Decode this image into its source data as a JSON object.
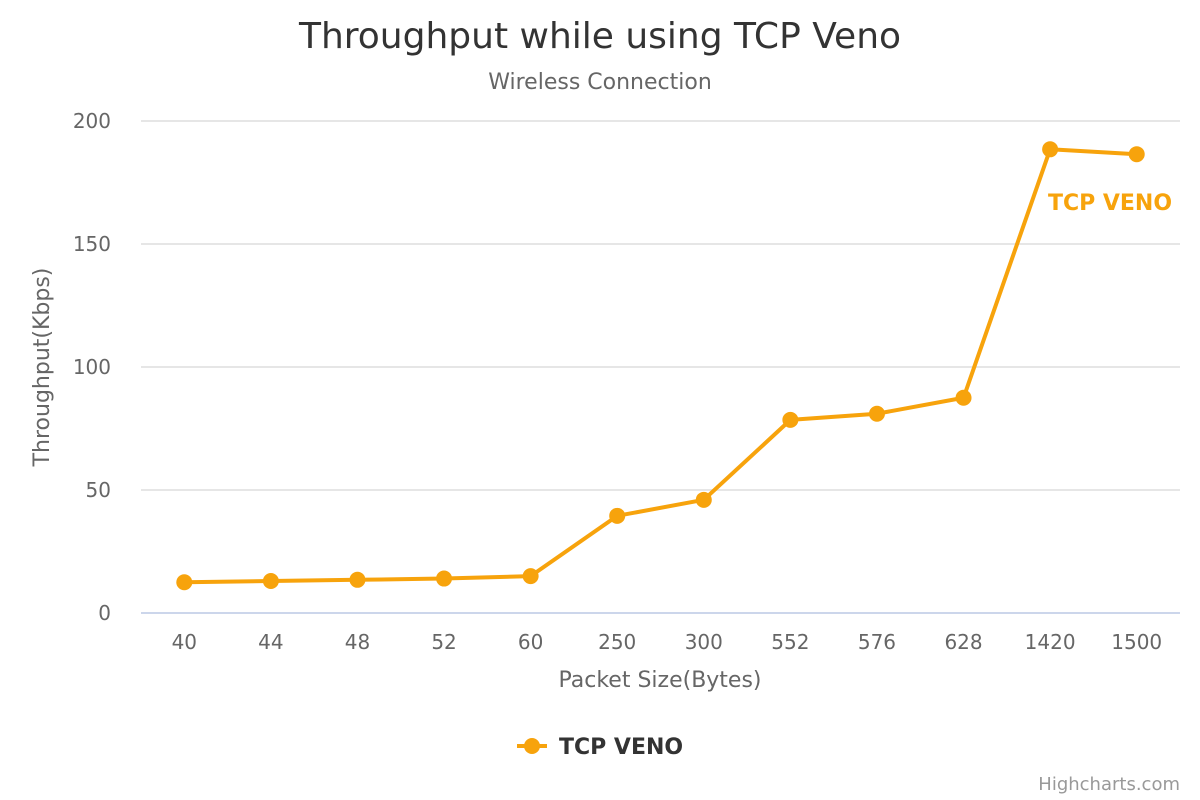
{
  "chart_data": {
    "type": "line",
    "title": "Throughput while using TCP Veno",
    "subtitle": "Wireless Connection",
    "xlabel": "Packet Size(Bytes)",
    "ylabel": "Throughput(Kbps)",
    "categories": [
      "40",
      "44",
      "48",
      "52",
      "60",
      "250",
      "300",
      "552",
      "576",
      "628",
      "1420",
      "1500"
    ],
    "ylim": [
      0,
      200
    ],
    "yticks": [
      0,
      50,
      100,
      150,
      200
    ],
    "grid": true,
    "legend_position": "bottom-center",
    "series": [
      {
        "name": "TCP VENO",
        "color": "#f7a30c",
        "values": [
          12.5,
          13,
          13.5,
          14,
          15,
          39.5,
          46,
          78.5,
          81,
          87.5,
          188.5,
          186.5
        ]
      }
    ]
  },
  "credits": "Highcharts.com"
}
